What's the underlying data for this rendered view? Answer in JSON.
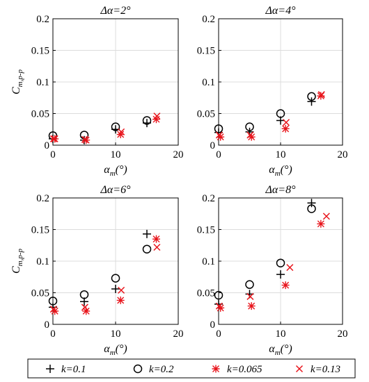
{
  "legend": [
    {
      "label": "k=0.1",
      "marker": "plus",
      "color": "#000000"
    },
    {
      "label": "k=0.2",
      "marker": "circle",
      "color": "#000000"
    },
    {
      "label": "k=0.065",
      "marker": "asterisk",
      "color": "#e8141b"
    },
    {
      "label": "k=0.13",
      "marker": "cross",
      "color": "#e8141b"
    }
  ],
  "chart_data": [
    {
      "type": "scatter",
      "title": "Δα=2°",
      "xlabel": "αm(°)",
      "xlabel_main": "α",
      "xlabel_sub": "m",
      "xlabel_unit": "(°)",
      "ylabel": "Cm,p-p",
      "ylabel_main": "C",
      "ylabel_sub": "m,p-p",
      "xlim": [
        0,
        20
      ],
      "ylim": [
        0,
        0.2
      ],
      "xticks": [
        "0",
        "10",
        "20"
      ],
      "yticks": [
        "0",
        "0.05",
        "0.1",
        "0.15",
        "0.2"
      ],
      "grid": true,
      "series": [
        {
          "name": "k=0.1",
          "points": [
            [
              0,
              0.01
            ],
            [
              5,
              0.008
            ],
            [
              10,
              0.025
            ],
            [
              15,
              0.035
            ]
          ]
        },
        {
          "name": "k=0.2",
          "points": [
            [
              0,
              0.015
            ],
            [
              5,
              0.016
            ],
            [
              10,
              0.029
            ],
            [
              15,
              0.039
            ]
          ]
        },
        {
          "name": "k=0.065",
          "points": [
            [
              0.3,
              0.01
            ],
            [
              5.3,
              0.008
            ],
            [
              10.8,
              0.017
            ],
            [
              16.5,
              0.041
            ]
          ]
        },
        {
          "name": "k=0.13",
          "points": [
            [
              0.1,
              0.01
            ],
            [
              5.1,
              0.009
            ],
            [
              10.9,
              0.021
            ],
            [
              16.6,
              0.046
            ]
          ]
        }
      ]
    },
    {
      "type": "scatter",
      "title": "Δα=4°",
      "xlabel": "αm(°)",
      "xlabel_main": "α",
      "xlabel_sub": "m",
      "xlabel_unit": "(°)",
      "ylabel": "",
      "ylabel_main": "",
      "ylabel_sub": "",
      "xlim": [
        0,
        20
      ],
      "ylim": [
        0,
        0.2
      ],
      "xticks": [
        "0",
        "10",
        "20"
      ],
      "yticks": [
        "0",
        "0.05",
        "0.1",
        "0.15",
        "0.2"
      ],
      "grid": true,
      "series": [
        {
          "name": "k=0.1",
          "points": [
            [
              0,
              0.02
            ],
            [
              5,
              0.021
            ],
            [
              10,
              0.039
            ],
            [
              15,
              0.069
            ]
          ]
        },
        {
          "name": "k=0.2",
          "points": [
            [
              0,
              0.026
            ],
            [
              5,
              0.029
            ],
            [
              10,
              0.05
            ],
            [
              15,
              0.077
            ]
          ]
        },
        {
          "name": "k=0.065",
          "points": [
            [
              0.3,
              0.013
            ],
            [
              5.3,
              0.013
            ],
            [
              10.8,
              0.026
            ],
            [
              16.5,
              0.078
            ]
          ]
        },
        {
          "name": "k=0.13",
          "points": [
            [
              0.1,
              0.016
            ],
            [
              5.1,
              0.016
            ],
            [
              10.9,
              0.036
            ],
            [
              16.6,
              0.08
            ]
          ]
        }
      ]
    },
    {
      "type": "scatter",
      "title": "Δα=6°",
      "xlabel": "αm(°)",
      "xlabel_main": "α",
      "xlabel_sub": "m",
      "xlabel_unit": "(°)",
      "ylabel": "Cm,p-p",
      "ylabel_main": "C",
      "ylabel_sub": "m,p-p",
      "xlim": [
        0,
        20
      ],
      "ylim": [
        0,
        0.2
      ],
      "xticks": [
        "0",
        "10",
        "20"
      ],
      "yticks": [
        "0",
        "0.05",
        "0.1",
        "0.15",
        "0.2"
      ],
      "grid": true,
      "series": [
        {
          "name": "k=0.1",
          "points": [
            [
              0,
              0.027
            ],
            [
              5,
              0.036
            ],
            [
              10,
              0.056
            ],
            [
              15,
              0.143
            ]
          ]
        },
        {
          "name": "k=0.2",
          "points": [
            [
              0,
              0.037
            ],
            [
              5,
              0.047
            ],
            [
              10,
              0.073
            ],
            [
              15,
              0.119
            ]
          ]
        },
        {
          "name": "k=0.065",
          "points": [
            [
              0.3,
              0.021
            ],
            [
              5.3,
              0.021
            ],
            [
              10.8,
              0.038
            ],
            [
              16.5,
              0.135
            ]
          ]
        },
        {
          "name": "k=0.13",
          "points": [
            [
              0.1,
              0.024
            ],
            [
              5.1,
              0.027
            ],
            [
              10.9,
              0.054
            ],
            [
              16.6,
              0.122
            ]
          ]
        }
      ]
    },
    {
      "type": "scatter",
      "title": "Δα=8°",
      "xlabel": "αm(°)",
      "xlabel_main": "α",
      "xlabel_sub": "m",
      "xlabel_unit": "(°)",
      "ylabel": "",
      "ylabel_main": "",
      "ylabel_sub": "",
      "xlim": [
        0,
        20
      ],
      "ylim": [
        0,
        0.2
      ],
      "xticks": [
        "0",
        "10",
        "20"
      ],
      "yticks": [
        "0",
        "0.05",
        "0.1",
        "0.15",
        "0.2"
      ],
      "grid": true,
      "series": [
        {
          "name": "k=0.1",
          "points": [
            [
              0,
              0.032
            ],
            [
              5,
              0.048
            ],
            [
              10,
              0.079
            ],
            [
              15,
              0.192
            ]
          ]
        },
        {
          "name": "k=0.2",
          "points": [
            [
              0,
              0.046
            ],
            [
              5,
              0.063
            ],
            [
              10,
              0.097
            ],
            [
              15,
              0.183
            ]
          ]
        },
        {
          "name": "k=0.065",
          "points": [
            [
              0.3,
              0.026
            ],
            [
              5.3,
              0.029
            ],
            [
              10.8,
              0.062
            ],
            [
              16.5,
              0.159
            ]
          ]
        },
        {
          "name": "k=0.13",
          "points": [
            [
              0.1,
              0.029
            ],
            [
              5.1,
              0.044
            ],
            [
              11.5,
              0.09
            ],
            [
              17.4,
              0.171
            ]
          ]
        }
      ]
    }
  ]
}
